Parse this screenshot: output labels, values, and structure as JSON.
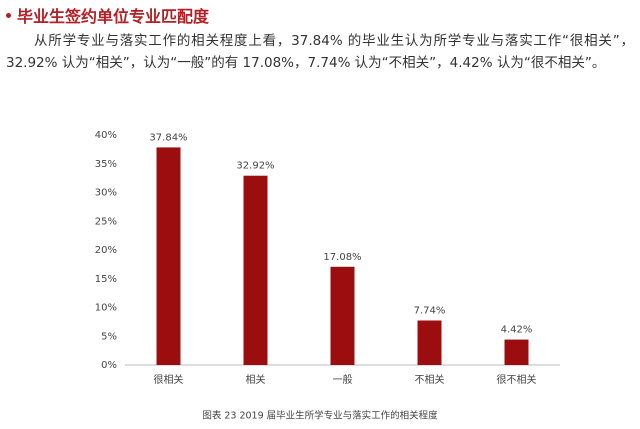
{
  "heading": "毕业生签约单位专业匹配度",
  "paragraph": "从所学专业与落实工作的相关程度上看，37.84% 的毕业生认为所学专业与落实工作“很相关”，32.92% 认为“相关”，认为“一般”的有 17.08%，7.74% 认为“不相关”，4.42% 认为“很不相关”。",
  "chart_data": {
    "type": "bar",
    "caption": "图表 23  2019 届毕业生所学专业与落实工作的相关程度",
    "categories": [
      "很相关",
      "相关",
      "一般",
      "不相关",
      "很不相关"
    ],
    "values": [
      37.84,
      32.92,
      17.08,
      7.74,
      4.42
    ],
    "value_labels": [
      "37.84%",
      "32.92%",
      "17.08%",
      "7.74%",
      "4.42%"
    ],
    "color": "#9c0d10",
    "ylim": [
      0,
      40
    ],
    "yticks": [
      {
        "value": 0,
        "label": "0%"
      },
      {
        "value": 5,
        "label": "5%"
      },
      {
        "value": 10,
        "label": "10%"
      },
      {
        "value": 15,
        "label": "15%"
      },
      {
        "value": 20,
        "label": "20%"
      },
      {
        "value": 25,
        "label": "25%"
      },
      {
        "value": 30,
        "label": "30%"
      },
      {
        "value": 35,
        "label": "35%"
      },
      {
        "value": 40,
        "label": "40%"
      }
    ],
    "grid": false
  }
}
